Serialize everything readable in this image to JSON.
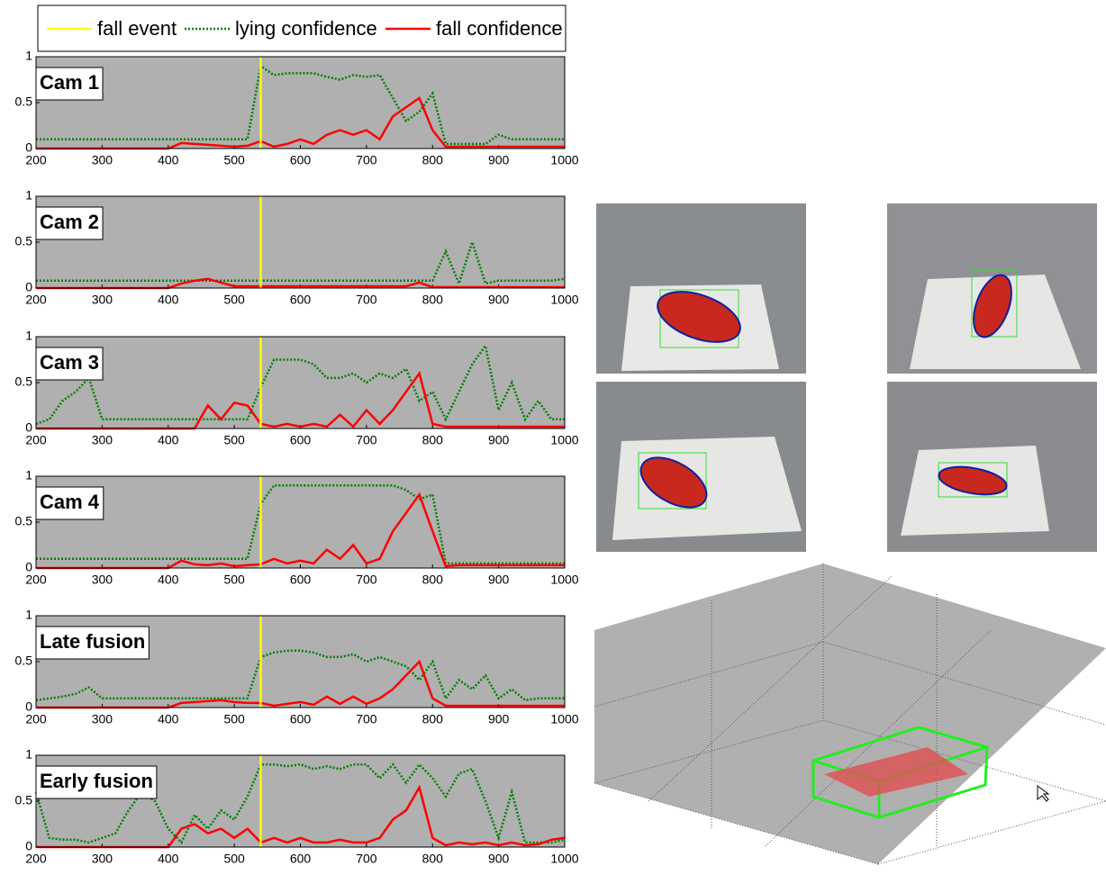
{
  "chart_data": [
    {
      "type": "line",
      "label": "Cam 1",
      "fall_event": {
        "name": "fall event",
        "x": 540,
        "color": "#ffff00"
      },
      "x": [
        200,
        220,
        240,
        260,
        280,
        300,
        320,
        340,
        360,
        380,
        400,
        420,
        440,
        460,
        480,
        500,
        520,
        540,
        560,
        580,
        600,
        620,
        640,
        660,
        680,
        700,
        720,
        740,
        760,
        780,
        800,
        820,
        840,
        860,
        880,
        900,
        920,
        940,
        960,
        980,
        1000
      ],
      "series": [
        {
          "name": "lying confidence",
          "color": "#008000",
          "values": [
            0.1,
            0.1,
            0.1,
            0.1,
            0.1,
            0.1,
            0.1,
            0.1,
            0.1,
            0.1,
            0.1,
            0.1,
            0.1,
            0.1,
            0.1,
            0.1,
            0.1,
            0.9,
            0.8,
            0.82,
            0.82,
            0.82,
            0.78,
            0.75,
            0.8,
            0.78,
            0.8,
            0.55,
            0.3,
            0.4,
            0.6,
            0.05,
            0.05,
            0.05,
            0.05,
            0.15,
            0.1,
            0.1,
            0.1,
            0.1,
            0.1
          ]
        },
        {
          "name": "fall confidence",
          "color": "#ff0000",
          "values": [
            0,
            0,
            0,
            0,
            0,
            0,
            0,
            0,
            0,
            0,
            0,
            0.06,
            0.05,
            0.04,
            0.03,
            0.02,
            0.03,
            0.08,
            0.02,
            0.05,
            0.1,
            0.05,
            0.15,
            0.2,
            0.15,
            0.2,
            0.1,
            0.35,
            0.45,
            0.55,
            0.2,
            0.02,
            0.02,
            0.02,
            0.02,
            0.02,
            0.02,
            0.02,
            0.02,
            0.02,
            0.02
          ]
        }
      ],
      "xlim": [
        200,
        1000
      ],
      "xticks": [
        200,
        300,
        400,
        500,
        600,
        700,
        800,
        900,
        1000
      ],
      "ylim": [
        0,
        1
      ],
      "yticks": [
        0,
        0.5,
        1
      ]
    },
    {
      "type": "line",
      "label": "Cam 2",
      "fall_event": {
        "x": 540,
        "color": "#ffff00"
      },
      "x": [
        200,
        220,
        240,
        260,
        280,
        300,
        320,
        340,
        360,
        380,
        400,
        420,
        440,
        460,
        480,
        500,
        520,
        540,
        560,
        580,
        600,
        620,
        640,
        660,
        680,
        700,
        720,
        740,
        760,
        780,
        800,
        820,
        840,
        860,
        880,
        900,
        920,
        940,
        960,
        980,
        1000
      ],
      "series": [
        {
          "color": "#008000",
          "values": [
            0.08,
            0.08,
            0.08,
            0.08,
            0.08,
            0.08,
            0.08,
            0.08,
            0.08,
            0.08,
            0.08,
            0.08,
            0.08,
            0.08,
            0.08,
            0.08,
            0.08,
            0.08,
            0.08,
            0.08,
            0.08,
            0.08,
            0.08,
            0.08,
            0.08,
            0.08,
            0.08,
            0.08,
            0.08,
            0.08,
            0.08,
            0.4,
            0.05,
            0.5,
            0.05,
            0.08,
            0.08,
            0.08,
            0.08,
            0.08,
            0.1
          ]
        },
        {
          "color": "#ff0000",
          "values": [
            0,
            0,
            0,
            0,
            0,
            0,
            0,
            0,
            0,
            0,
            0,
            0.05,
            0.08,
            0.1,
            0.06,
            0.02,
            0.02,
            0.02,
            0.02,
            0.02,
            0.02,
            0.02,
            0.02,
            0.02,
            0.02,
            0.02,
            0.02,
            0.02,
            0.02,
            0.06,
            0.01,
            0.01,
            0.01,
            0.01,
            0.01,
            0.01,
            0.01,
            0.01,
            0.01,
            0.01,
            0.01
          ]
        }
      ],
      "xlim": [
        200,
        1000
      ],
      "xticks": [
        200,
        300,
        400,
        500,
        600,
        700,
        800,
        900,
        1000
      ],
      "ylim": [
        0,
        1
      ],
      "yticks": [
        0,
        0.5,
        1
      ]
    },
    {
      "type": "line",
      "label": "Cam 3",
      "fall_event": {
        "x": 540,
        "color": "#ffff00"
      },
      "x": [
        200,
        220,
        240,
        260,
        280,
        300,
        320,
        340,
        360,
        380,
        400,
        420,
        440,
        460,
        480,
        500,
        520,
        540,
        560,
        580,
        600,
        620,
        640,
        660,
        680,
        700,
        720,
        740,
        760,
        780,
        800,
        820,
        840,
        860,
        880,
        900,
        920,
        940,
        960,
        980,
        1000
      ],
      "series": [
        {
          "color": "#008000",
          "values": [
            0.05,
            0.1,
            0.3,
            0.4,
            0.55,
            0.1,
            0.1,
            0.1,
            0.1,
            0.1,
            0.1,
            0.1,
            0.1,
            0.1,
            0.1,
            0.1,
            0.1,
            0.45,
            0.75,
            0.75,
            0.75,
            0.7,
            0.55,
            0.55,
            0.6,
            0.5,
            0.6,
            0.55,
            0.65,
            0.3,
            0.4,
            0.1,
            0.4,
            0.7,
            0.9,
            0.2,
            0.5,
            0.1,
            0.3,
            0.1,
            0.1
          ]
        },
        {
          "color": "#ff0000",
          "values": [
            0,
            0,
            0,
            0,
            0,
            0,
            0,
            0,
            0,
            0,
            0,
            0,
            0,
            0.25,
            0.1,
            0.28,
            0.25,
            0.05,
            0.02,
            0.05,
            0.02,
            0.05,
            0.02,
            0.15,
            0.02,
            0.2,
            0.05,
            0.2,
            0.4,
            0.6,
            0.05,
            0.02,
            0.02,
            0.02,
            0.02,
            0.02,
            0.02,
            0.02,
            0.02,
            0.02,
            0.02
          ]
        }
      ],
      "xlim": [
        200,
        1000
      ],
      "xticks": [
        200,
        300,
        400,
        500,
        600,
        700,
        800,
        900,
        1000
      ],
      "ylim": [
        0,
        1
      ],
      "yticks": [
        0,
        0.5,
        1
      ]
    },
    {
      "type": "line",
      "label": "Cam 4",
      "fall_event": {
        "x": 540,
        "color": "#ffff00"
      },
      "x": [
        200,
        220,
        240,
        260,
        280,
        300,
        320,
        340,
        360,
        380,
        400,
        420,
        440,
        460,
        480,
        500,
        520,
        540,
        560,
        580,
        600,
        620,
        640,
        660,
        680,
        700,
        720,
        740,
        760,
        780,
        800,
        820,
        840,
        860,
        880,
        900,
        920,
        940,
        960,
        980,
        1000
      ],
      "series": [
        {
          "color": "#008000",
          "values": [
            0.1,
            0.1,
            0.1,
            0.1,
            0.1,
            0.1,
            0.1,
            0.1,
            0.1,
            0.1,
            0.1,
            0.1,
            0.1,
            0.1,
            0.1,
            0.1,
            0.1,
            0.7,
            0.9,
            0.9,
            0.9,
            0.9,
            0.9,
            0.9,
            0.9,
            0.9,
            0.9,
            0.9,
            0.85,
            0.75,
            0.8,
            0.05,
            0.05,
            0.05,
            0.05,
            0.05,
            0.05,
            0.05,
            0.05,
            0.05,
            0.05
          ]
        },
        {
          "color": "#ff0000",
          "values": [
            0,
            0,
            0,
            0,
            0,
            0,
            0,
            0,
            0,
            0,
            0,
            0.08,
            0.04,
            0.03,
            0.05,
            0.02,
            0.03,
            0.04,
            0.1,
            0.05,
            0.08,
            0.05,
            0.2,
            0.1,
            0.25,
            0.05,
            0.1,
            0.4,
            0.6,
            0.8,
            0.4,
            0.02,
            0.03,
            0.03,
            0.03,
            0.03,
            0.03,
            0.03,
            0.03,
            0.03,
            0.03
          ]
        }
      ],
      "xlim": [
        200,
        1000
      ],
      "xticks": [
        200,
        300,
        400,
        500,
        600,
        700,
        800,
        900,
        1000
      ],
      "ylim": [
        0,
        1
      ],
      "yticks": [
        0,
        0.5,
        1
      ]
    },
    {
      "type": "line",
      "label": "Late fusion",
      "fall_event": {
        "x": 540,
        "color": "#ffff00"
      },
      "x": [
        200,
        220,
        240,
        260,
        280,
        300,
        320,
        340,
        360,
        380,
        400,
        420,
        440,
        460,
        480,
        500,
        520,
        540,
        560,
        580,
        600,
        620,
        640,
        660,
        680,
        700,
        720,
        740,
        760,
        780,
        800,
        820,
        840,
        860,
        880,
        900,
        920,
        940,
        960,
        980,
        1000
      ],
      "series": [
        {
          "color": "#008000",
          "values": [
            0.08,
            0.1,
            0.12,
            0.15,
            0.22,
            0.1,
            0.1,
            0.1,
            0.1,
            0.1,
            0.1,
            0.1,
            0.1,
            0.1,
            0.1,
            0.1,
            0.1,
            0.55,
            0.6,
            0.62,
            0.62,
            0.6,
            0.55,
            0.55,
            0.58,
            0.5,
            0.55,
            0.5,
            0.45,
            0.3,
            0.5,
            0.1,
            0.3,
            0.2,
            0.35,
            0.1,
            0.2,
            0.08,
            0.1,
            0.1,
            0.1
          ]
        },
        {
          "color": "#ff0000",
          "values": [
            0,
            0,
            0,
            0,
            0,
            0,
            0,
            0,
            0,
            0,
            0,
            0.05,
            0.06,
            0.07,
            0.08,
            0.06,
            0.05,
            0.05,
            0.02,
            0.04,
            0.06,
            0.03,
            0.12,
            0.04,
            0.12,
            0.04,
            0.1,
            0.2,
            0.35,
            0.5,
            0.1,
            0.02,
            0.02,
            0.02,
            0.02,
            0.02,
            0.02,
            0.02,
            0.02,
            0.02,
            0.02
          ]
        }
      ],
      "xlim": [
        200,
        1000
      ],
      "xticks": [
        200,
        300,
        400,
        500,
        600,
        700,
        800,
        900,
        1000
      ],
      "ylim": [
        0,
        1
      ],
      "yticks": [
        0,
        0.5,
        1
      ]
    },
    {
      "type": "line",
      "label": "Early fusion",
      "fall_event": {
        "x": 540,
        "color": "#ffff00"
      },
      "x": [
        200,
        220,
        240,
        260,
        280,
        300,
        320,
        340,
        360,
        380,
        400,
        420,
        440,
        460,
        480,
        500,
        520,
        540,
        560,
        580,
        600,
        620,
        640,
        660,
        680,
        700,
        720,
        740,
        760,
        780,
        800,
        820,
        840,
        860,
        880,
        900,
        920,
        940,
        960,
        980,
        1000
      ],
      "series": [
        {
          "color": "#008000",
          "values": [
            0.6,
            0.1,
            0.08,
            0.08,
            0.05,
            0.1,
            0.15,
            0.4,
            0.6,
            0.5,
            0.2,
            0.05,
            0.35,
            0.2,
            0.4,
            0.3,
            0.55,
            0.9,
            0.9,
            0.88,
            0.9,
            0.85,
            0.88,
            0.85,
            0.9,
            0.9,
            0.75,
            0.9,
            0.7,
            0.9,
            0.75,
            0.55,
            0.8,
            0.85,
            0.5,
            0.1,
            0.6,
            0.05,
            0.05,
            0.05,
            0.08
          ]
        },
        {
          "color": "#ff0000",
          "values": [
            0,
            0,
            0,
            0,
            0,
            0,
            0,
            0,
            0,
            0,
            0,
            0.2,
            0.25,
            0.15,
            0.2,
            0.1,
            0.2,
            0.05,
            0.1,
            0.05,
            0.1,
            0.05,
            0.05,
            0.08,
            0.05,
            0.05,
            0.1,
            0.3,
            0.4,
            0.65,
            0.1,
            0.02,
            0.05,
            0.03,
            0.05,
            0.02,
            0.05,
            0.02,
            0.03,
            0.08,
            0.1
          ]
        }
      ],
      "xlim": [
        200,
        1000
      ],
      "xticks": [
        200,
        300,
        400,
        500,
        600,
        700,
        800,
        900,
        1000
      ],
      "ylim": [
        0,
        1
      ],
      "yticks": [
        0,
        0.5,
        1
      ]
    }
  ]
}
